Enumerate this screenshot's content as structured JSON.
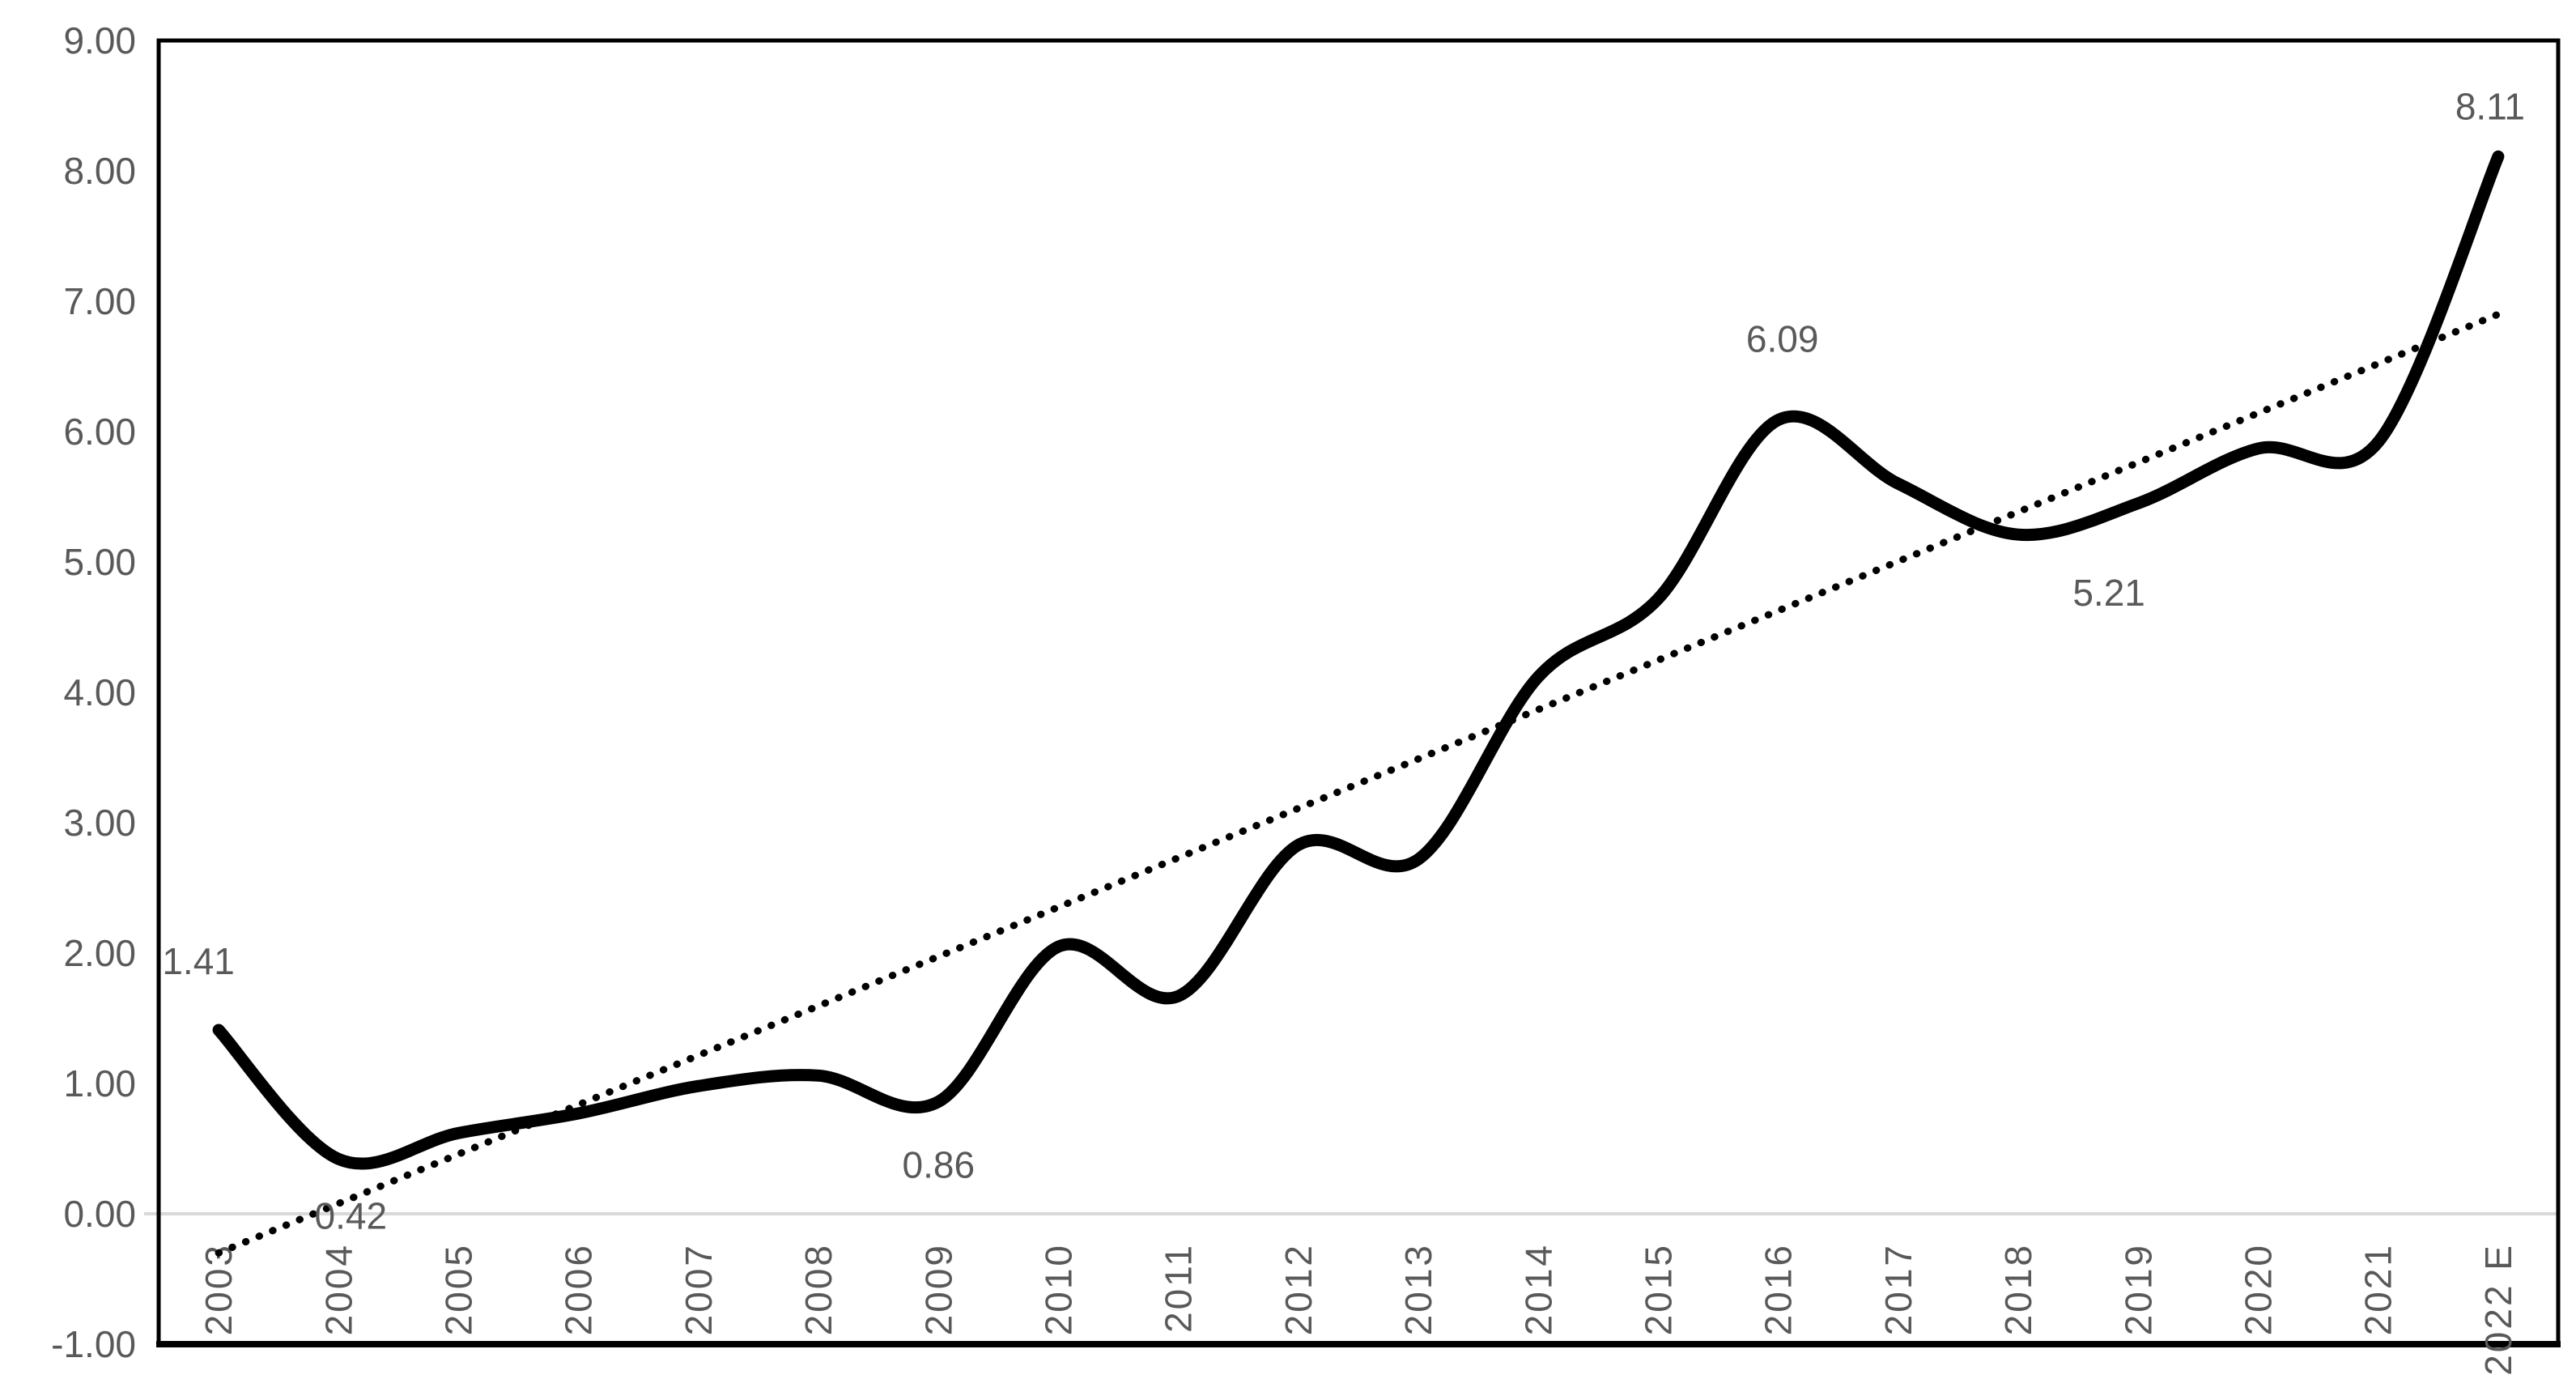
{
  "page": {
    "background": "#ffffff",
    "description": "Line chart with smoothed thick black series and dotted linear trendline, years 2003 to 2022 E"
  },
  "chart_data": {
    "type": "line",
    "title": "",
    "xlabel": "",
    "ylabel": "",
    "categories": [
      "2003",
      "2004",
      "2005",
      "2006",
      "2007",
      "2008",
      "2009",
      "2010",
      "2011",
      "2012",
      "2013",
      "2014",
      "2015",
      "2016",
      "2017",
      "2018",
      "2019",
      "2020",
      "2021",
      "2022 E"
    ],
    "series": [
      {
        "name": "main-series",
        "style": "thick-smooth-solid",
        "values": [
          1.41,
          0.42,
          0.62,
          0.77,
          0.98,
          1.06,
          0.86,
          2.05,
          1.67,
          2.83,
          2.72,
          4.12,
          4.72,
          6.09,
          5.6,
          5.21,
          5.45,
          5.87,
          5.92,
          8.11
        ]
      }
    ],
    "trendline": {
      "name": "linear-trendline",
      "style": "dotted",
      "start_value": -0.3,
      "end_value": 6.9
    },
    "data_labels": [
      {
        "category": "2003",
        "text": "1.41"
      },
      {
        "category": "2004",
        "text": "0.42"
      },
      {
        "category": "2009",
        "text": "0.86"
      },
      {
        "category": "2016",
        "text": "6.09"
      },
      {
        "category": "2018",
        "text": "5.21"
      },
      {
        "category": "2022 E",
        "text": "8.11"
      }
    ],
    "y_axis": {
      "min": -1,
      "max": 9,
      "tick_step": 1,
      "tick_labels": [
        "9.00",
        "8.00",
        "7.00",
        "6.00",
        "5.00",
        "4.00",
        "3.00",
        "2.00",
        "1.00",
        "0.00",
        "-1.00"
      ]
    },
    "x_axis": {
      "label_rotation_degrees": -90
    },
    "ylim": [
      -1,
      9
    ],
    "grid": "zero-line-only",
    "legend": "none",
    "colors": {
      "series_line": "#000000",
      "trendline": "#000000",
      "plot_border": "#000000",
      "zero_line": "#d9d9d9",
      "axis_text": "#595959",
      "data_label_text": "#595959"
    }
  }
}
